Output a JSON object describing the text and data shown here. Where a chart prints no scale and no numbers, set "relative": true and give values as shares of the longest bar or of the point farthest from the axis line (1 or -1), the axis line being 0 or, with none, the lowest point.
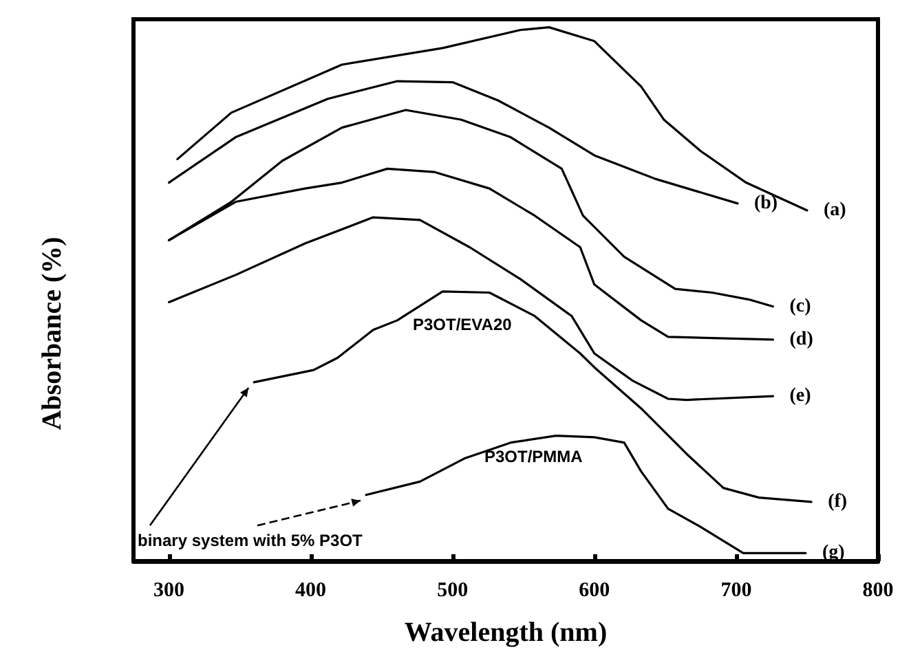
{
  "chart_data": {
    "type": "line",
    "relative": true,
    "xlabel": "Wavelength (nm)",
    "ylabel": "Absorbance (%)",
    "xlim": [
      275,
      800
    ],
    "xticks": [
      300,
      400,
      500,
      600,
      700,
      800
    ],
    "tick_labels": "x",
    "grid": false,
    "legend": false,
    "marker": "none",
    "line_style": "solid",
    "series": [
      {
        "name": "(a)",
        "color": "#000000",
        "x": [
          306,
          344,
          422,
          493,
          548,
          568,
          600,
          633,
          649,
          675,
          707,
          750
        ],
        "values": [
          0.753,
          0.84,
          0.93,
          0.961,
          0.995,
          1.0,
          0.974,
          0.889,
          0.827,
          0.768,
          0.709,
          0.657
        ]
      },
      {
        "name": "(b)",
        "color": "#000000",
        "x": [
          300,
          347,
          412,
          461,
          500,
          532,
          568,
          600,
          643,
          701
        ],
        "values": [
          0.709,
          0.794,
          0.866,
          0.899,
          0.897,
          0.863,
          0.812,
          0.76,
          0.716,
          0.67
        ]
      },
      {
        "name": "(c)",
        "color": "#000000",
        "x": [
          300,
          344,
          380,
          422,
          467,
          506,
          541,
          577,
          592,
          621,
          657,
          683,
          709,
          726
        ],
        "values": [
          0.601,
          0.673,
          0.75,
          0.812,
          0.845,
          0.827,
          0.794,
          0.735,
          0.647,
          0.57,
          0.51,
          0.503,
          0.49,
          0.477
        ]
      },
      {
        "name": "(d)",
        "color": "#000000",
        "x": [
          300,
          347,
          396,
          422,
          454,
          487,
          526,
          558,
          590,
          600,
          633,
          652,
          726
        ],
        "values": [
          0.601,
          0.673,
          0.698,
          0.709,
          0.735,
          0.729,
          0.698,
          0.647,
          0.588,
          0.518,
          0.451,
          0.42,
          0.415
        ]
      },
      {
        "name": "(e)",
        "color": "#000000",
        "x": [
          300,
          347,
          396,
          444,
          477,
          512,
          548,
          584,
          600,
          627,
          652,
          665,
          726
        ],
        "values": [
          0.485,
          0.536,
          0.595,
          0.644,
          0.639,
          0.588,
          0.528,
          0.459,
          0.389,
          0.338,
          0.304,
          0.302,
          0.309
        ]
      },
      {
        "name": "(f)",
        "color": "#000000",
        "x": [
          360,
          402,
          419,
          444,
          461,
          493,
          526,
          558,
          590,
          600,
          633,
          665,
          691,
          716,
          753
        ],
        "values": [
          0.335,
          0.358,
          0.381,
          0.433,
          0.451,
          0.505,
          0.503,
          0.459,
          0.389,
          0.363,
          0.286,
          0.201,
          0.137,
          0.119,
          0.111
        ]
      },
      {
        "name": "(g)",
        "color": "#000000",
        "x": [
          439,
          477,
          509,
          541,
          573,
          600,
          621,
          633,
          652,
          675,
          705,
          749
        ],
        "values": [
          0.124,
          0.149,
          0.193,
          0.222,
          0.235,
          0.232,
          0.222,
          0.168,
          0.098,
          0.064,
          0.015,
          0.015
        ]
      }
    ],
    "annotations": [
      "P3OT/EVA20",
      "P3OT/PMMA",
      "binary system with 5% P3OT"
    ]
  }
}
